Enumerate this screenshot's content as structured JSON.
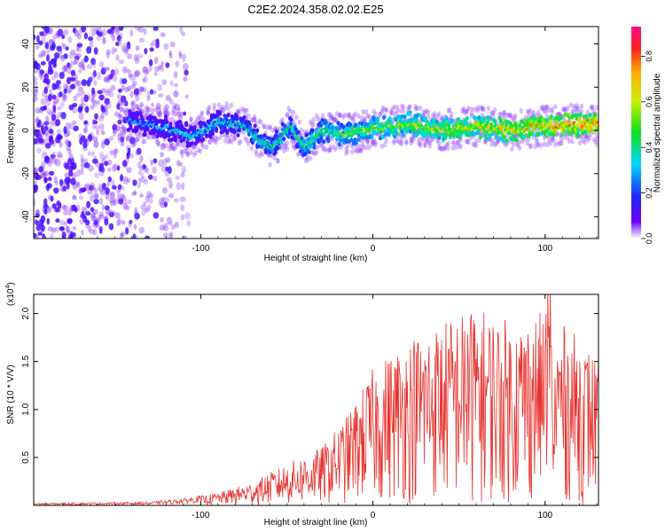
{
  "title": "C2E2.2024.358.02.02.E25",
  "chart_data": [
    {
      "type": "heatmap",
      "xlabel": "Height of straight line (km)",
      "ylabel": "Frequency (Hz)",
      "xlim": [
        -197,
        131
      ],
      "ylim": [
        -50,
        48
      ],
      "xticks": [
        -100,
        0,
        100
      ],
      "yticks": [
        -40,
        -20,
        0,
        20,
        40
      ],
      "grid": false,
      "colorbar": {
        "label": "Normalized spectral amplitude",
        "range": [
          0,
          0.93
        ],
        "ticks": [
          0.0,
          0.2,
          0.4,
          0.6,
          0.8
        ]
      },
      "ridge": [
        {
          "x": -140,
          "y": 4
        },
        {
          "x": -120,
          "y": 1
        },
        {
          "x": -105,
          "y": -3
        },
        {
          "x": -90,
          "y": 4
        },
        {
          "x": -75,
          "y": 2
        },
        {
          "x": -65,
          "y": -5
        },
        {
          "x": -58,
          "y": -8
        },
        {
          "x": -48,
          "y": 2
        },
        {
          "x": -40,
          "y": -8
        },
        {
          "x": -30,
          "y": 0
        },
        {
          "x": -15,
          "y": -2
        },
        {
          "x": 0,
          "y": 1
        },
        {
          "x": 20,
          "y": 3
        },
        {
          "x": 40,
          "y": 0
        },
        {
          "x": 60,
          "y": 2
        },
        {
          "x": 80,
          "y": 0
        },
        {
          "x": 100,
          "y": 2
        },
        {
          "x": 120,
          "y": 3
        },
        {
          "x": 131,
          "y": 2
        }
      ]
    },
    {
      "type": "line",
      "xlabel": "Height of straight line (km)",
      "ylabel": "SNR (10 * V/V)",
      "yscale_label": "(x10",
      "yscale_exp": "4",
      "yscale_close": ")",
      "xlim": [
        -197,
        131
      ],
      "ylim": [
        0,
        2.2
      ],
      "xticks": [
        -100,
        0,
        100
      ],
      "yticks": [
        0.5,
        1.0,
        1.5,
        2.0
      ],
      "ytick_labels": [
        "0.5",
        "1.0",
        "1.5",
        "2.0"
      ],
      "color": "#e8332e",
      "envelope": [
        {
          "x": -197,
          "y": 0.02
        },
        {
          "x": -130,
          "y": 0.03
        },
        {
          "x": -110,
          "y": 0.06
        },
        {
          "x": -90,
          "y": 0.12
        },
        {
          "x": -70,
          "y": 0.22
        },
        {
          "x": -50,
          "y": 0.4
        },
        {
          "x": -30,
          "y": 0.55
        },
        {
          "x": -15,
          "y": 0.85
        },
        {
          "x": 0,
          "y": 1.3
        },
        {
          "x": 20,
          "y": 1.6
        },
        {
          "x": 40,
          "y": 1.75
        },
        {
          "x": 60,
          "y": 1.9
        },
        {
          "x": 80,
          "y": 1.75
        },
        {
          "x": 100,
          "y": 1.85
        },
        {
          "x": 120,
          "y": 1.6
        },
        {
          "x": 131,
          "y": 1.4
        }
      ]
    }
  ]
}
